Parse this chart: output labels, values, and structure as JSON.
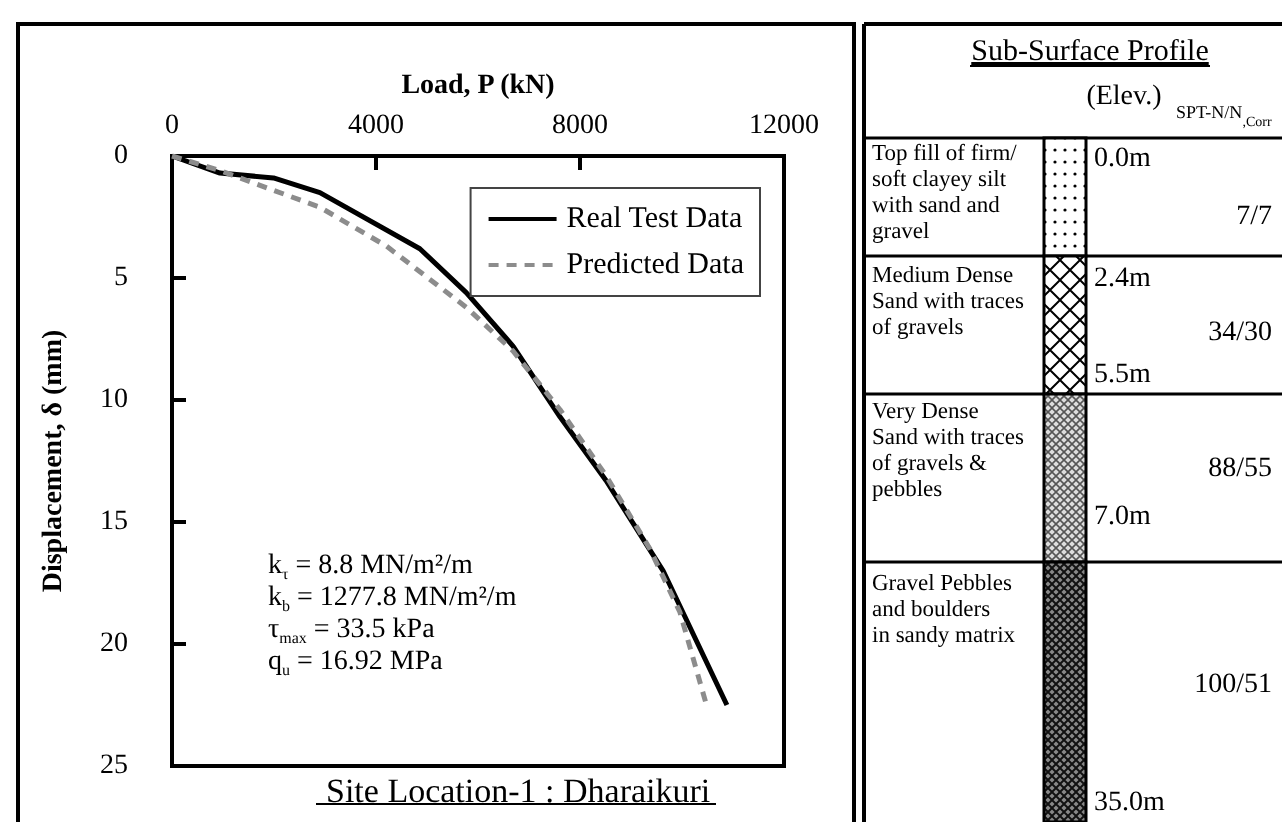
{
  "chart_data": [
    {
      "type": "line",
      "title": "Site Location-1 : Dharaikuri",
      "xlabel": "Load, P (kN)",
      "ylabel": "Displacement, δ (mm)",
      "xlim": [
        0,
        12000
      ],
      "xticks": [
        0,
        4000,
        8000,
        12000
      ],
      "ylim": [
        25,
        0
      ],
      "yticks": [
        0,
        5,
        10,
        15,
        20,
        25
      ],
      "grid": false,
      "legend": "top right",
      "marker": "none",
      "series": [
        {
          "name": "Real Test Data",
          "color": "#000000",
          "line_style": "solid",
          "x": [
            0,
            940,
            1990,
            2900,
            4860,
            5770,
            6690,
            7610,
            8510,
            9630,
            10880
          ],
          "values": [
            0,
            0.7,
            0.9,
            1.5,
            3.8,
            5.6,
            7.8,
            10.7,
            13.3,
            17,
            22.5
          ]
        },
        {
          "name": "Predicted Data",
          "color": "#8c8c8c",
          "line_style": "dashed",
          "x": [
            0,
            940,
            2900,
            4210,
            5770,
            6690,
            7610,
            8510,
            9370,
            9960,
            10480
          ],
          "values": [
            0,
            0.6,
            2.1,
            3.7,
            6.2,
            8,
            10.4,
            13.1,
            16.1,
            18.7,
            22.5
          ]
        }
      ],
      "annotations": [
        "k$_{τ}$ = 8.8 MN/m²/m",
        "k$_{b}$ = 1277.8 MN/m²/m",
        "τ$_{max}$ = 33.5 kPa",
        "q$_{u}$ = 16.92 MPa"
      ]
    },
    {
      "type": "other",
      "title": "Sub-Surface Profile",
      "annotations": [
        "(Elev.)",
        "SPT-N/N$_{,Corr}$",
        "Top fill of firm/\nsoft clayey silt\nwith sand and\ngravel",
        "Medium Dense\nSand with traces\nof gravels",
        "Very Dense\nSand with traces\nof gravels &\npebbles",
        "Gravel Pebbles\nand boulders\nin sandy matrix",
        "0.0m",
        "2.4m",
        "5.5m",
        "7.0m",
        "35.0m",
        "7/7",
        "34/30",
        "88/55",
        "100/51"
      ]
    }
  ]
}
